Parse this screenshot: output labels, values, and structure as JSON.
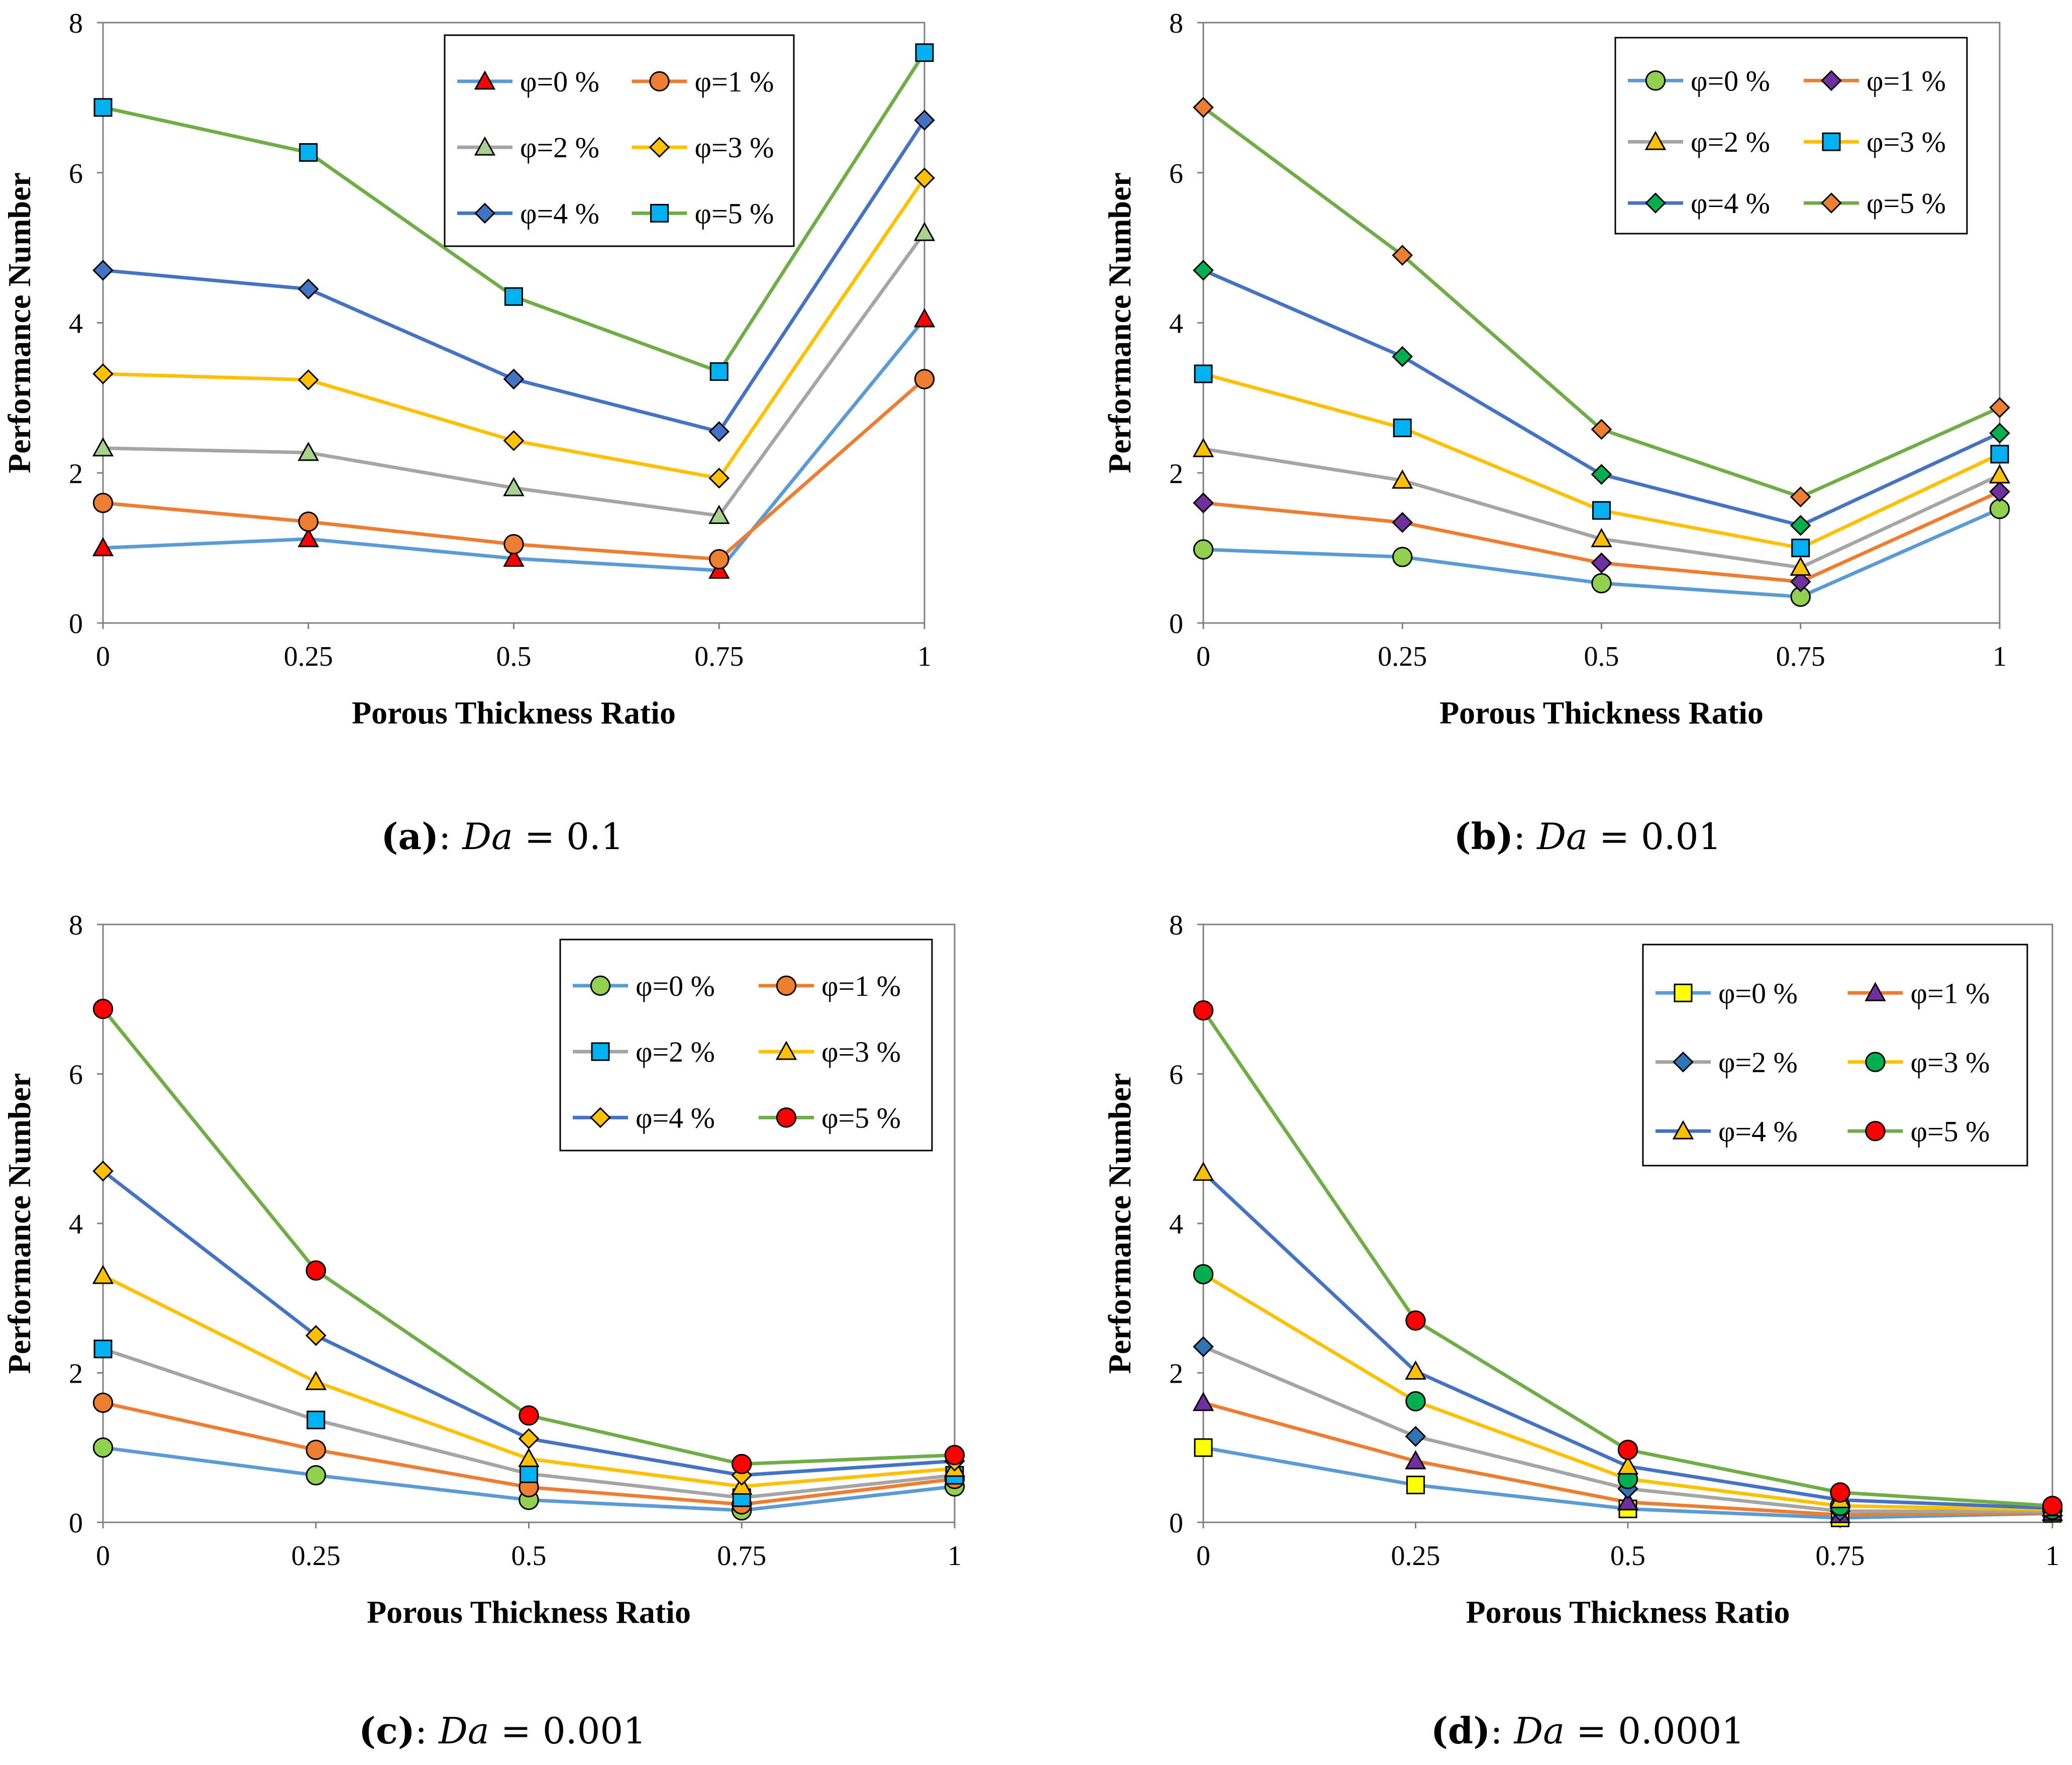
{
  "series_colors": [
    "#5B9BD5",
    "#ED7D31",
    "#A5A5A5",
    "#FFC000",
    "#4472C4",
    "#70AD47"
  ],
  "chart_data": [
    {
      "type": "line",
      "panel_label": "(a)",
      "caption_sep": ":",
      "caption_var": "Da",
      "caption_eq": "=",
      "caption_value": "0.1",
      "xlabel": "Porous Thickness Ratio",
      "ylabel": "Performance Number",
      "x": [
        0,
        0.25,
        0.5,
        0.75,
        1
      ],
      "x_tick_labels": [
        "0",
        "0.25",
        "0.5",
        "0.75",
        "1"
      ],
      "ylim": [
        0,
        8
      ],
      "y_ticks": [
        0,
        2,
        4,
        6,
        8
      ],
      "legend_position": "top-right",
      "series": [
        {
          "name": "φ=0 %",
          "values": [
            1.0,
            1.12,
            0.86,
            0.7,
            4.05
          ],
          "marker": "triangle",
          "marker_color": "#FF0000"
        },
        {
          "name": "φ=1 %",
          "values": [
            1.6,
            1.35,
            1.05,
            0.85,
            3.25
          ],
          "marker": "circle",
          "marker_color": "#ED7D31"
        },
        {
          "name": "φ=2 %",
          "values": [
            2.33,
            2.27,
            1.8,
            1.43,
            5.2
          ],
          "marker": "triangle",
          "marker_color": "#A9D18E"
        },
        {
          "name": "φ=3 %",
          "values": [
            3.32,
            3.24,
            2.43,
            1.93,
            5.93
          ],
          "marker": "diamond",
          "marker_color": "#FFC000"
        },
        {
          "name": "φ=4 %",
          "values": [
            4.7,
            4.45,
            3.25,
            2.55,
            6.7
          ],
          "marker": "diamond",
          "marker_color": "#4472C4"
        },
        {
          "name": "φ=5 %",
          "values": [
            6.87,
            6.27,
            4.35,
            3.35,
            7.6
          ],
          "marker": "square",
          "marker_color": "#00B0F0"
        }
      ]
    },
    {
      "type": "line",
      "panel_label": "(b)",
      "caption_sep": ":",
      "caption_var": "Da",
      "caption_eq": "=",
      "caption_value": "0.01",
      "xlabel": "Porous Thickness Ratio",
      "ylabel": "Performance Number",
      "x": [
        0,
        0.25,
        0.5,
        0.75,
        1
      ],
      "x_tick_labels": [
        "0",
        "0.25",
        "0.5",
        "0.75",
        "1"
      ],
      "ylim": [
        0,
        8
      ],
      "y_ticks": [
        0,
        2,
        4,
        6,
        8
      ],
      "legend_position": "top-right",
      "series": [
        {
          "name": "φ=0 %",
          "values": [
            0.98,
            0.88,
            0.53,
            0.35,
            1.52
          ],
          "marker": "circle",
          "marker_color": "#92D050"
        },
        {
          "name": "φ=1 %",
          "values": [
            1.6,
            1.34,
            0.8,
            0.55,
            1.75
          ],
          "marker": "diamond",
          "marker_color": "#7030A0"
        },
        {
          "name": "φ=2 %",
          "values": [
            2.32,
            1.9,
            1.12,
            0.74,
            1.97
          ],
          "marker": "triangle",
          "marker_color": "#FFC000"
        },
        {
          "name": "φ=3 %",
          "values": [
            3.32,
            2.6,
            1.5,
            1.0,
            2.25
          ],
          "marker": "square",
          "marker_color": "#00B0F0"
        },
        {
          "name": "φ=4 %",
          "values": [
            4.7,
            3.55,
            1.98,
            1.3,
            2.53
          ],
          "marker": "diamond",
          "marker_color": "#00B050"
        },
        {
          "name": "φ=5 %",
          "values": [
            6.87,
            4.9,
            2.58,
            1.68,
            2.87
          ],
          "marker": "diamond",
          "marker_color": "#ED7D31"
        }
      ]
    },
    {
      "type": "line",
      "panel_label": "(c)",
      "caption_sep": ":",
      "caption_var": "Da",
      "caption_eq": "=",
      "caption_value": "0.001",
      "xlabel": "Porous Thickness Ratio",
      "ylabel": "Performance Number",
      "x": [
        0,
        0.25,
        0.5,
        0.75,
        1
      ],
      "x_tick_labels": [
        "0",
        "0.25",
        "0.5",
        "0.75",
        "1"
      ],
      "ylim": [
        0,
        8
      ],
      "y_ticks": [
        0,
        2,
        4,
        6,
        8
      ],
      "legend_position": "top-right",
      "series": [
        {
          "name": "φ=0 %",
          "values": [
            1.0,
            0.63,
            0.3,
            0.16,
            0.48
          ],
          "marker": "circle",
          "marker_color": "#92D050"
        },
        {
          "name": "φ=1 %",
          "values": [
            1.6,
            0.97,
            0.47,
            0.24,
            0.58
          ],
          "marker": "circle",
          "marker_color": "#ED7D31"
        },
        {
          "name": "φ=2 %",
          "values": [
            2.32,
            1.37,
            0.65,
            0.33,
            0.63
          ],
          "marker": "square",
          "marker_color": "#00B0F0"
        },
        {
          "name": "φ=3 %",
          "values": [
            3.3,
            1.88,
            0.85,
            0.48,
            0.72
          ],
          "marker": "triangle",
          "marker_color": "#FFC000"
        },
        {
          "name": "φ=4 %",
          "values": [
            4.7,
            2.5,
            1.12,
            0.63,
            0.82
          ],
          "marker": "diamond",
          "marker_color": "#FFC000"
        },
        {
          "name": "φ=5 %",
          "values": [
            6.87,
            3.37,
            1.43,
            0.78,
            0.9
          ],
          "marker": "circle",
          "marker_color": "#FF0000"
        }
      ]
    },
    {
      "type": "line",
      "panel_label": "(d)",
      "caption_sep": ":",
      "caption_var": "Da",
      "caption_eq": "=",
      "caption_value": "0.0001",
      "xlabel": "Porous Thickness Ratio",
      "ylabel": "Performance Number",
      "x": [
        0,
        0.25,
        0.5,
        0.75,
        1
      ],
      "x_tick_labels": [
        "0",
        "0.25",
        "0.5",
        "0.75",
        "1"
      ],
      "ylim": [
        0,
        8
      ],
      "y_ticks": [
        0,
        2,
        4,
        6,
        8
      ],
      "legend_position": "top-right",
      "series": [
        {
          "name": "φ=0 %",
          "values": [
            1.0,
            0.5,
            0.18,
            0.06,
            0.12
          ],
          "marker": "square",
          "marker_color": "#FFFF00"
        },
        {
          "name": "φ=1 %",
          "values": [
            1.6,
            0.82,
            0.27,
            0.1,
            0.13
          ],
          "marker": "triangle",
          "marker_color": "#7030A0"
        },
        {
          "name": "φ=2 %",
          "values": [
            2.35,
            1.15,
            0.45,
            0.15,
            0.15
          ],
          "marker": "diamond",
          "marker_color": "#2E75B6"
        },
        {
          "name": "φ=3 %",
          "values": [
            3.32,
            1.62,
            0.58,
            0.22,
            0.17
          ],
          "marker": "circle",
          "marker_color": "#00B050"
        },
        {
          "name": "φ=4 %",
          "values": [
            4.68,
            2.02,
            0.75,
            0.3,
            0.19
          ],
          "marker": "triangle",
          "marker_color": "#FFC000"
        },
        {
          "name": "φ=5 %",
          "values": [
            6.85,
            2.7,
            0.97,
            0.4,
            0.22
          ],
          "marker": "circle",
          "marker_color": "#FF0000"
        }
      ]
    }
  ]
}
